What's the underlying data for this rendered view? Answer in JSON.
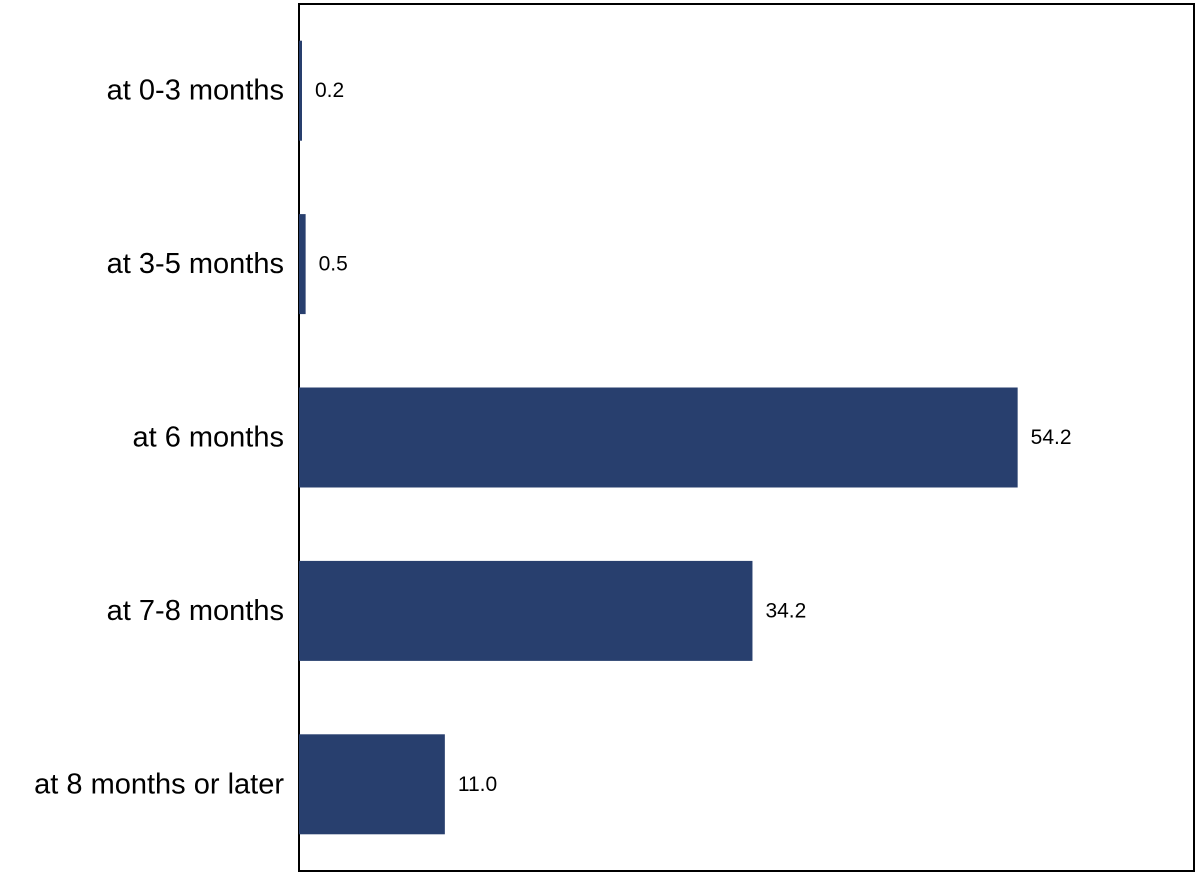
{
  "colors": {
    "bar": "#283f6e",
    "frame": "#000000",
    "background": "#ffffff"
  },
  "chart_data": {
    "type": "bar",
    "orientation": "horizontal",
    "title": "",
    "xlabel": "",
    "ylabel": "",
    "grid": false,
    "legend": "none",
    "xlim": [
      0,
      67.5
    ],
    "categories": [
      "at 0-3 months",
      "at 3-5 months",
      "at 6 months",
      "at 7-8 months",
      "at 8 months or later"
    ],
    "values": [
      0.2,
      0.5,
      54.2,
      34.2,
      11.0
    ],
    "value_labels": [
      "0.2",
      "0.5",
      "54.2",
      "34.2",
      "11.0"
    ]
  }
}
